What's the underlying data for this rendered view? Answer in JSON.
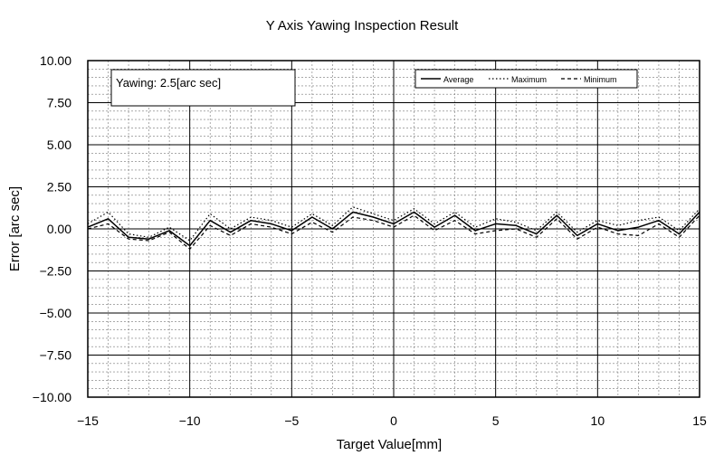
{
  "chart_data": {
    "type": "line",
    "title": "Y Axis Yawing Inspection Result",
    "xlabel": "Target Value[mm]",
    "ylabel": "Error [arc  sec]",
    "xlim": [
      -15,
      15
    ],
    "ylim": [
      -10,
      10
    ],
    "x_ticks": [
      "−15",
      "−10",
      "−5",
      "0",
      "5",
      "10",
      "15"
    ],
    "y_ticks": [
      "10.00",
      "7.50",
      "5.00",
      "2.50",
      "0.00",
      "−2.50",
      "−5.00",
      "−7.50",
      "−10.00"
    ],
    "grid": true,
    "annotation": "Yawing: 2.5[arc sec]",
    "legend_position": "top-right",
    "x": [
      -15,
      -14,
      -13,
      -12,
      -11,
      -10,
      -9,
      -8,
      -7,
      -6,
      -5,
      -4,
      -3,
      -2,
      -1,
      0,
      1,
      2,
      3,
      4,
      5,
      6,
      7,
      8,
      9,
      10,
      11,
      12,
      13,
      14,
      15
    ],
    "series": [
      {
        "name": "Average",
        "style": "solid",
        "values": [
          0.1,
          0.6,
          -0.5,
          -0.6,
          -0.1,
          -1.0,
          0.5,
          -0.2,
          0.5,
          0.3,
          -0.1,
          0.7,
          0.0,
          1.0,
          0.7,
          0.3,
          1.0,
          0.1,
          0.8,
          -0.1,
          0.3,
          0.2,
          -0.3,
          0.8,
          -0.4,
          0.3,
          -0.1,
          0.1,
          0.5,
          -0.3,
          1.0
        ]
      },
      {
        "name": "Maximum",
        "style": "dotted",
        "values": [
          0.3,
          1.0,
          -0.3,
          -0.5,
          0.1,
          -0.7,
          0.9,
          0.0,
          0.7,
          0.5,
          0.1,
          0.9,
          0.2,
          1.3,
          0.9,
          0.5,
          1.2,
          0.3,
          1.0,
          0.1,
          0.6,
          0.4,
          -0.1,
          1.0,
          -0.2,
          0.5,
          0.2,
          0.5,
          0.7,
          -0.1,
          1.2
        ]
      },
      {
        "name": "Minimum",
        "style": "dashed",
        "values": [
          0.0,
          0.3,
          -0.6,
          -0.7,
          -0.2,
          -1.2,
          0.2,
          -0.4,
          0.3,
          0.1,
          -0.3,
          0.4,
          -0.2,
          0.7,
          0.5,
          0.1,
          0.8,
          -0.1,
          0.5,
          -0.3,
          -0.1,
          0.0,
          -0.5,
          0.6,
          -0.6,
          0.1,
          -0.3,
          -0.4,
          0.3,
          -0.5,
          0.8
        ]
      }
    ]
  }
}
